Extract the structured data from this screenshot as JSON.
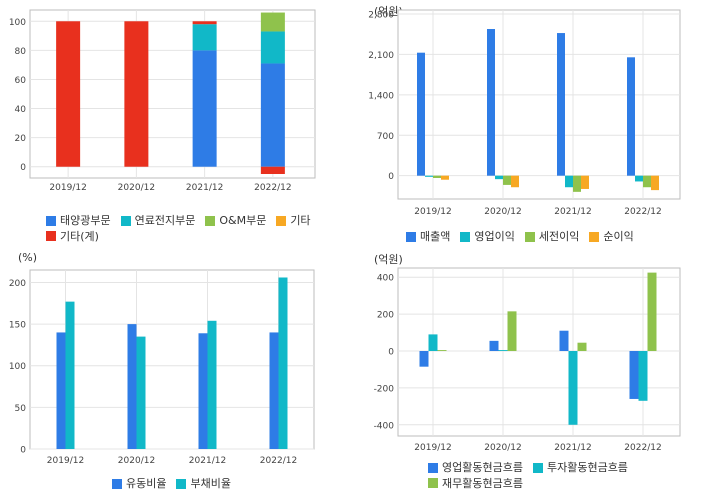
{
  "colors": {
    "blue": "#2e7ce6",
    "teal": "#11b8c8",
    "green": "#8fc24c",
    "orange": "#f7a823",
    "red": "#e8301e",
    "grid": "#e4e4e4",
    "frame": "#bdbdbd",
    "plot_bg": "#ffffff"
  },
  "chart_data": [
    {
      "id": "segment-sales",
      "type": "bar",
      "stacked": true,
      "categories": [
        "2019/12",
        "2020/12",
        "2021/12",
        "2022/12"
      ],
      "unit_label": "",
      "ylim": [
        -5,
        105
      ],
      "yticks": [
        0,
        20,
        40,
        60,
        80,
        100
      ],
      "series": [
        {
          "name": "태양광부문",
          "color": "#2e7ce6",
          "values": [
            0,
            0,
            80,
            71
          ]
        },
        {
          "name": "연료전지부문",
          "color": "#11b8c8",
          "values": [
            0,
            0,
            18,
            22
          ]
        },
        {
          "name": "O&M부문",
          "color": "#8fc24c",
          "values": [
            0,
            0,
            0,
            13
          ]
        },
        {
          "name": "기타",
          "color": "#f7a823",
          "values": [
            0,
            0,
            0,
            0
          ]
        },
        {
          "name": "기타(계)",
          "color": "#e8301e",
          "values": [
            100,
            100,
            2,
            -5
          ]
        }
      ],
      "grid": true
    },
    {
      "id": "income",
      "type": "bar",
      "stacked": false,
      "categories": [
        "2019/12",
        "2020/12",
        "2021/12",
        "2022/12"
      ],
      "unit_label": "(억원)",
      "ylim": [
        -300,
        2800
      ],
      "yticks": [
        0,
        700,
        1400,
        2100,
        2800
      ],
      "ytick_labels": [
        "0",
        "700",
        "1,400",
        "2,100",
        "2,800"
      ],
      "series": [
        {
          "name": "매출액",
          "color": "#2e7ce6",
          "values": [
            2130,
            2540,
            2470,
            2050
          ]
        },
        {
          "name": "영업이익",
          "color": "#11b8c8",
          "values": [
            -20,
            -60,
            -200,
            -100
          ]
        },
        {
          "name": "세전이익",
          "color": "#8fc24c",
          "values": [
            -40,
            -160,
            -280,
            -200
          ]
        },
        {
          "name": "순이익",
          "color": "#f7a823",
          "values": [
            -70,
            -200,
            -230,
            -250
          ]
        }
      ],
      "grid": true
    },
    {
      "id": "ratios",
      "type": "bar",
      "stacked": false,
      "categories": [
        "2019/12",
        "2020/12",
        "2021/12",
        "2022/12"
      ],
      "unit_label": "(%)",
      "ylim": [
        0,
        215
      ],
      "yticks": [
        0,
        50,
        100,
        150,
        200
      ],
      "series": [
        {
          "name": "유동비율",
          "color": "#2e7ce6",
          "values": [
            140,
            150,
            139,
            140
          ]
        },
        {
          "name": "부채비율",
          "color": "#11b8c8",
          "values": [
            177,
            135,
            154,
            206
          ]
        }
      ],
      "grid": true
    },
    {
      "id": "cashflow",
      "type": "bar",
      "stacked": false,
      "categories": [
        "2019/12",
        "2020/12",
        "2021/12",
        "2022/12"
      ],
      "unit_label": "(억원)",
      "ylim": [
        -450,
        450
      ],
      "yticks": [
        -400,
        -200,
        0,
        200,
        400
      ],
      "series": [
        {
          "name": "영업활동현금흐름",
          "color": "#2e7ce6",
          "values": [
            -85,
            55,
            110,
            -260
          ]
        },
        {
          "name": "투자활동현금흐름",
          "color": "#11b8c8",
          "values": [
            90,
            5,
            -400,
            -270
          ]
        },
        {
          "name": "재무활동현금흐름",
          "color": "#8fc24c",
          "values": [
            5,
            215,
            45,
            425
          ]
        }
      ],
      "grid": true
    }
  ]
}
